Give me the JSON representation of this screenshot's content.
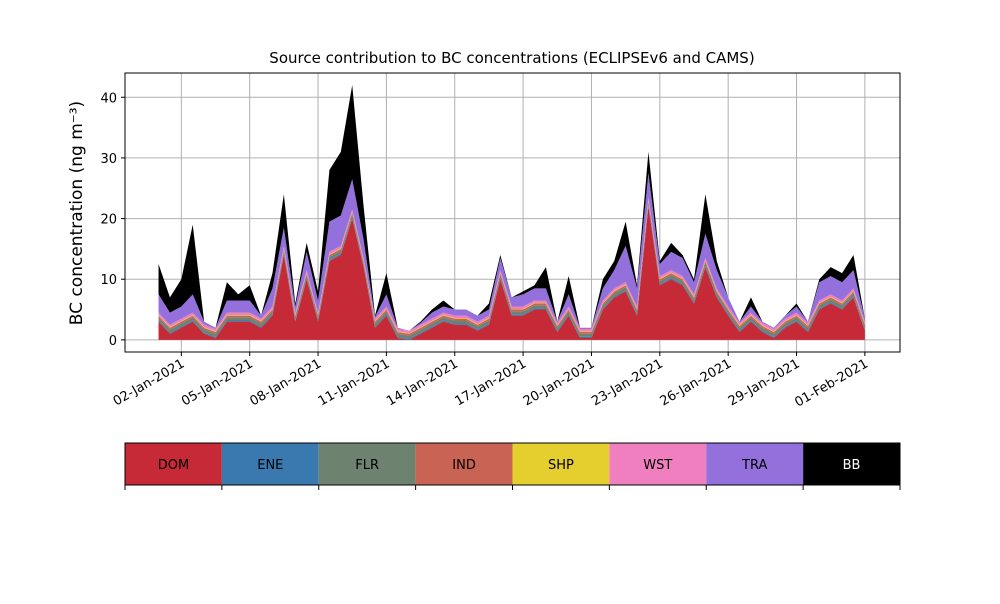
{
  "chart_data": {
    "type": "stacked_area",
    "title": "Source contribution to BC concentrations (ECLIPSEv6 and CAMS)",
    "y_label": "BC concentration (ng m⁻³)",
    "x": [
      "2021-01-01T00:00",
      "2021-01-01T12:00",
      "2021-01-02T00:00",
      "2021-01-02T12:00",
      "2021-01-03T00:00",
      "2021-01-03T12:00",
      "2021-01-04T00:00",
      "2021-01-04T12:00",
      "2021-01-05T00:00",
      "2021-01-05T12:00",
      "2021-01-06T00:00",
      "2021-01-06T12:00",
      "2021-01-07T00:00",
      "2021-01-07T12:00",
      "2021-01-08T00:00",
      "2021-01-08T12:00",
      "2021-01-09T00:00",
      "2021-01-09T12:00",
      "2021-01-10T00:00",
      "2021-01-10T12:00",
      "2021-01-11T00:00",
      "2021-01-11T12:00",
      "2021-01-12T00:00",
      "2021-01-12T12:00",
      "2021-01-13T00:00",
      "2021-01-13T12:00",
      "2021-01-14T00:00",
      "2021-01-14T12:00",
      "2021-01-15T00:00",
      "2021-01-15T12:00",
      "2021-01-16T00:00",
      "2021-01-16T12:00",
      "2021-01-17T00:00",
      "2021-01-17T12:00",
      "2021-01-18T00:00",
      "2021-01-18T12:00",
      "2021-01-19T00:00",
      "2021-01-19T12:00",
      "2021-01-20T00:00",
      "2021-01-20T12:00",
      "2021-01-21T00:00",
      "2021-01-21T12:00",
      "2021-01-22T00:00",
      "2021-01-22T12:00",
      "2021-01-23T00:00",
      "2021-01-23T12:00",
      "2021-01-24T00:00",
      "2021-01-24T12:00",
      "2021-01-25T00:00",
      "2021-01-25T12:00",
      "2021-01-26T00:00",
      "2021-01-26T12:00",
      "2021-01-27T00:00",
      "2021-01-27T12:00",
      "2021-01-28T00:00",
      "2021-01-28T12:00",
      "2021-01-29T00:00",
      "2021-01-29T12:00",
      "2021-01-30T00:00",
      "2021-01-30T12:00",
      "2021-01-31T00:00",
      "2021-01-31T12:00",
      "2021-02-01T00:00"
    ],
    "series": [
      {
        "name": "DOM",
        "color": "#c62a37",
        "values": [
          3,
          1,
          2,
          3,
          1,
          0.3,
          3,
          3,
          3,
          2,
          4,
          14,
          3,
          10,
          3,
          13,
          14,
          20,
          12,
          2,
          4,
          0.3,
          0,
          1,
          2,
          3,
          2.5,
          2.5,
          1.5,
          2.5,
          10,
          4,
          4,
          5,
          5,
          1.3,
          4,
          0.3,
          0.3,
          5,
          7,
          8,
          4,
          22,
          9,
          10,
          9,
          6,
          12,
          7,
          4,
          1.3,
          3,
          1.3,
          0.3,
          2,
          3,
          1.3,
          5,
          6,
          5,
          7,
          1.5
        ]
      },
      {
        "name": "ENE",
        "color": "#3a78b0",
        "values": [
          0.2,
          0.2,
          0.2,
          0.2,
          0.2,
          0.2,
          0.2,
          0.2,
          0.2,
          0.2,
          0.2,
          0.2,
          0.2,
          0.2,
          0.2,
          0.2,
          0.2,
          0.2,
          0.2,
          0.2,
          0.2,
          0.2,
          0.2,
          0.2,
          0.2,
          0.2,
          0.2,
          0.2,
          0.2,
          0.2,
          0.2,
          0.2,
          0.2,
          0.2,
          0.2,
          0.2,
          0.2,
          0.2,
          0.2,
          0.2,
          0.2,
          0.2,
          0.2,
          0.2,
          0.2,
          0.2,
          0.2,
          0.2,
          0.2,
          0.2,
          0.2,
          0.2,
          0.2,
          0.2,
          0.2,
          0.2,
          0.2,
          0.2,
          0.2,
          0.2,
          0.2,
          0.2,
          0.2
        ]
      },
      {
        "name": "FLR",
        "color": "#6e8270",
        "values": [
          0.5,
          0.5,
          0.5,
          0.5,
          0.5,
          0.5,
          0.5,
          0.5,
          0.5,
          0.5,
          0.5,
          0.5,
          0.5,
          0.5,
          0.5,
          0.5,
          0.5,
          0.5,
          0.5,
          0.5,
          0.5,
          0.5,
          0.5,
          0.5,
          0.5,
          0.5,
          0.5,
          0.5,
          0.5,
          0.5,
          0.5,
          0.5,
          0.5,
          0.5,
          0.5,
          0.5,
          0.5,
          0.5,
          0.5,
          0.5,
          0.5,
          0.5,
          0.5,
          0.5,
          0.5,
          0.5,
          0.5,
          0.5,
          0.5,
          0.5,
          0.5,
          0.5,
          0.5,
          0.5,
          0.5,
          0.5,
          0.5,
          0.5,
          0.5,
          0.5,
          0.5,
          0.5,
          0.5
        ]
      },
      {
        "name": "IND",
        "color": "#c96455",
        "values": [
          0.3,
          0.3,
          0.3,
          0.3,
          0.3,
          0.3,
          0.3,
          0.3,
          0.3,
          0.3,
          0.3,
          0.3,
          0.3,
          0.3,
          0.3,
          0.3,
          0.3,
          0.3,
          0.3,
          0.3,
          0.3,
          0.3,
          0.3,
          0.3,
          0.3,
          0.3,
          0.3,
          0.3,
          0.3,
          0.3,
          0.3,
          0.3,
          0.3,
          0.3,
          0.3,
          0.3,
          0.3,
          0.3,
          0.3,
          0.3,
          0.3,
          0.3,
          0.3,
          0.3,
          0.3,
          0.3,
          0.3,
          0.3,
          0.3,
          0.3,
          0.3,
          0.3,
          0.3,
          0.3,
          0.3,
          0.3,
          0.3,
          0.3,
          0.3,
          0.3,
          0.3,
          0.3,
          0.3
        ]
      },
      {
        "name": "SHP",
        "color": "#e5cf2e",
        "values": [
          0.1,
          0.1,
          0.1,
          0.1,
          0.1,
          0.1,
          0.1,
          0.1,
          0.1,
          0.1,
          0.1,
          0.1,
          0.1,
          0.1,
          0.1,
          0.1,
          0.1,
          0.1,
          0.1,
          0.1,
          0.1,
          0.1,
          0.1,
          0.1,
          0.1,
          0.1,
          0.1,
          0.1,
          0.1,
          0.1,
          0.1,
          0.1,
          0.1,
          0.1,
          0.1,
          0.1,
          0.1,
          0.1,
          0.1,
          0.1,
          0.1,
          0.1,
          0.1,
          0.1,
          0.1,
          0.1,
          0.1,
          0.1,
          0.1,
          0.1,
          0.1,
          0.1,
          0.1,
          0.1,
          0.1,
          0.1,
          0.1,
          0.1,
          0.1,
          0.1,
          0.1,
          0.1,
          0.1
        ]
      },
      {
        "name": "WST",
        "color": "#f07fbf",
        "values": [
          0.4,
          0.4,
          0.4,
          0.4,
          0.4,
          0.4,
          0.4,
          0.4,
          0.4,
          0.4,
          0.4,
          0.4,
          0.4,
          0.4,
          0.4,
          0.4,
          0.4,
          0.4,
          0.4,
          0.4,
          0.4,
          0.4,
          0.4,
          0.4,
          0.4,
          0.4,
          0.4,
          0.4,
          0.4,
          0.4,
          0.4,
          0.4,
          0.4,
          0.4,
          0.4,
          0.4,
          0.4,
          0.4,
          0.4,
          0.4,
          0.4,
          0.4,
          0.4,
          0.4,
          0.4,
          0.4,
          0.4,
          0.4,
          0.4,
          0.4,
          0.4,
          0.4,
          0.4,
          0.4,
          0.4,
          0.4,
          0.4,
          0.4,
          0.4,
          0.4,
          0.4,
          0.4,
          0.4
        ]
      },
      {
        "name": "TRA",
        "color": "#9370db",
        "values": [
          3,
          2,
          2,
          3,
          0.5,
          0.2,
          2,
          2,
          2,
          0.5,
          3,
          3,
          1,
          3,
          2,
          5,
          5,
          5,
          3,
          0.3,
          2,
          0.2,
          0,
          0.3,
          1,
          1,
          1,
          1,
          1,
          1,
          2,
          1.5,
          2,
          2,
          2,
          0.2,
          2,
          0.2,
          0.2,
          2,
          3,
          6,
          3,
          4,
          2,
          3,
          3,
          2,
          4,
          3,
          1.5,
          0.2,
          1,
          0.2,
          0.2,
          0.5,
          1,
          0.2,
          3,
          3,
          3,
          3,
          0.5
        ]
      },
      {
        "name": "BB",
        "color": "#000000",
        "values": [
          5,
          2.5,
          4.5,
          11.5,
          0,
          0,
          3,
          1,
          2.5,
          0,
          2.5,
          5.5,
          0.5,
          1.5,
          1.5,
          8.5,
          10.5,
          15.5,
          5.5,
          0.2,
          3.5,
          0,
          0,
          0.2,
          0.5,
          1,
          0,
          0,
          0,
          1,
          0.5,
          0,
          0.5,
          0.5,
          3.5,
          0,
          3,
          0,
          0,
          1.5,
          1.5,
          4,
          0.5,
          3.5,
          0.5,
          1.5,
          0.5,
          0.5,
          6.5,
          1.5,
          0,
          0,
          1.5,
          0,
          0,
          0,
          0.5,
          0,
          0.5,
          1.5,
          1.5,
          2.5,
          0
        ]
      }
    ],
    "xlim": [
      "2020-12-30T12:40",
      "2021-02-02T13:00"
    ],
    "xticks": [
      {
        "value": "2021-01-02T00:00",
        "label": "02-Jan-2021"
      },
      {
        "value": "2021-01-05T00:00",
        "label": "05-Jan-2021"
      },
      {
        "value": "2021-01-08T00:00",
        "label": "08-Jan-2021"
      },
      {
        "value": "2021-01-11T00:00",
        "label": "11-Jan-2021"
      },
      {
        "value": "2021-01-14T00:00",
        "label": "14-Jan-2021"
      },
      {
        "value": "2021-01-17T00:00",
        "label": "17-Jan-2021"
      },
      {
        "value": "2021-01-20T00:00",
        "label": "20-Jan-2021"
      },
      {
        "value": "2021-01-23T00:00",
        "label": "23-Jan-2021"
      },
      {
        "value": "2021-01-26T00:00",
        "label": "26-Jan-2021"
      },
      {
        "value": "2021-01-29T00:00",
        "label": "29-Jan-2021"
      },
      {
        "value": "2021-02-01T00:00",
        "label": "01-Feb-2021"
      }
    ],
    "ylim": [
      -2,
      44
    ],
    "yticks": [
      0,
      10,
      20,
      30,
      40
    ],
    "grid": true
  }
}
